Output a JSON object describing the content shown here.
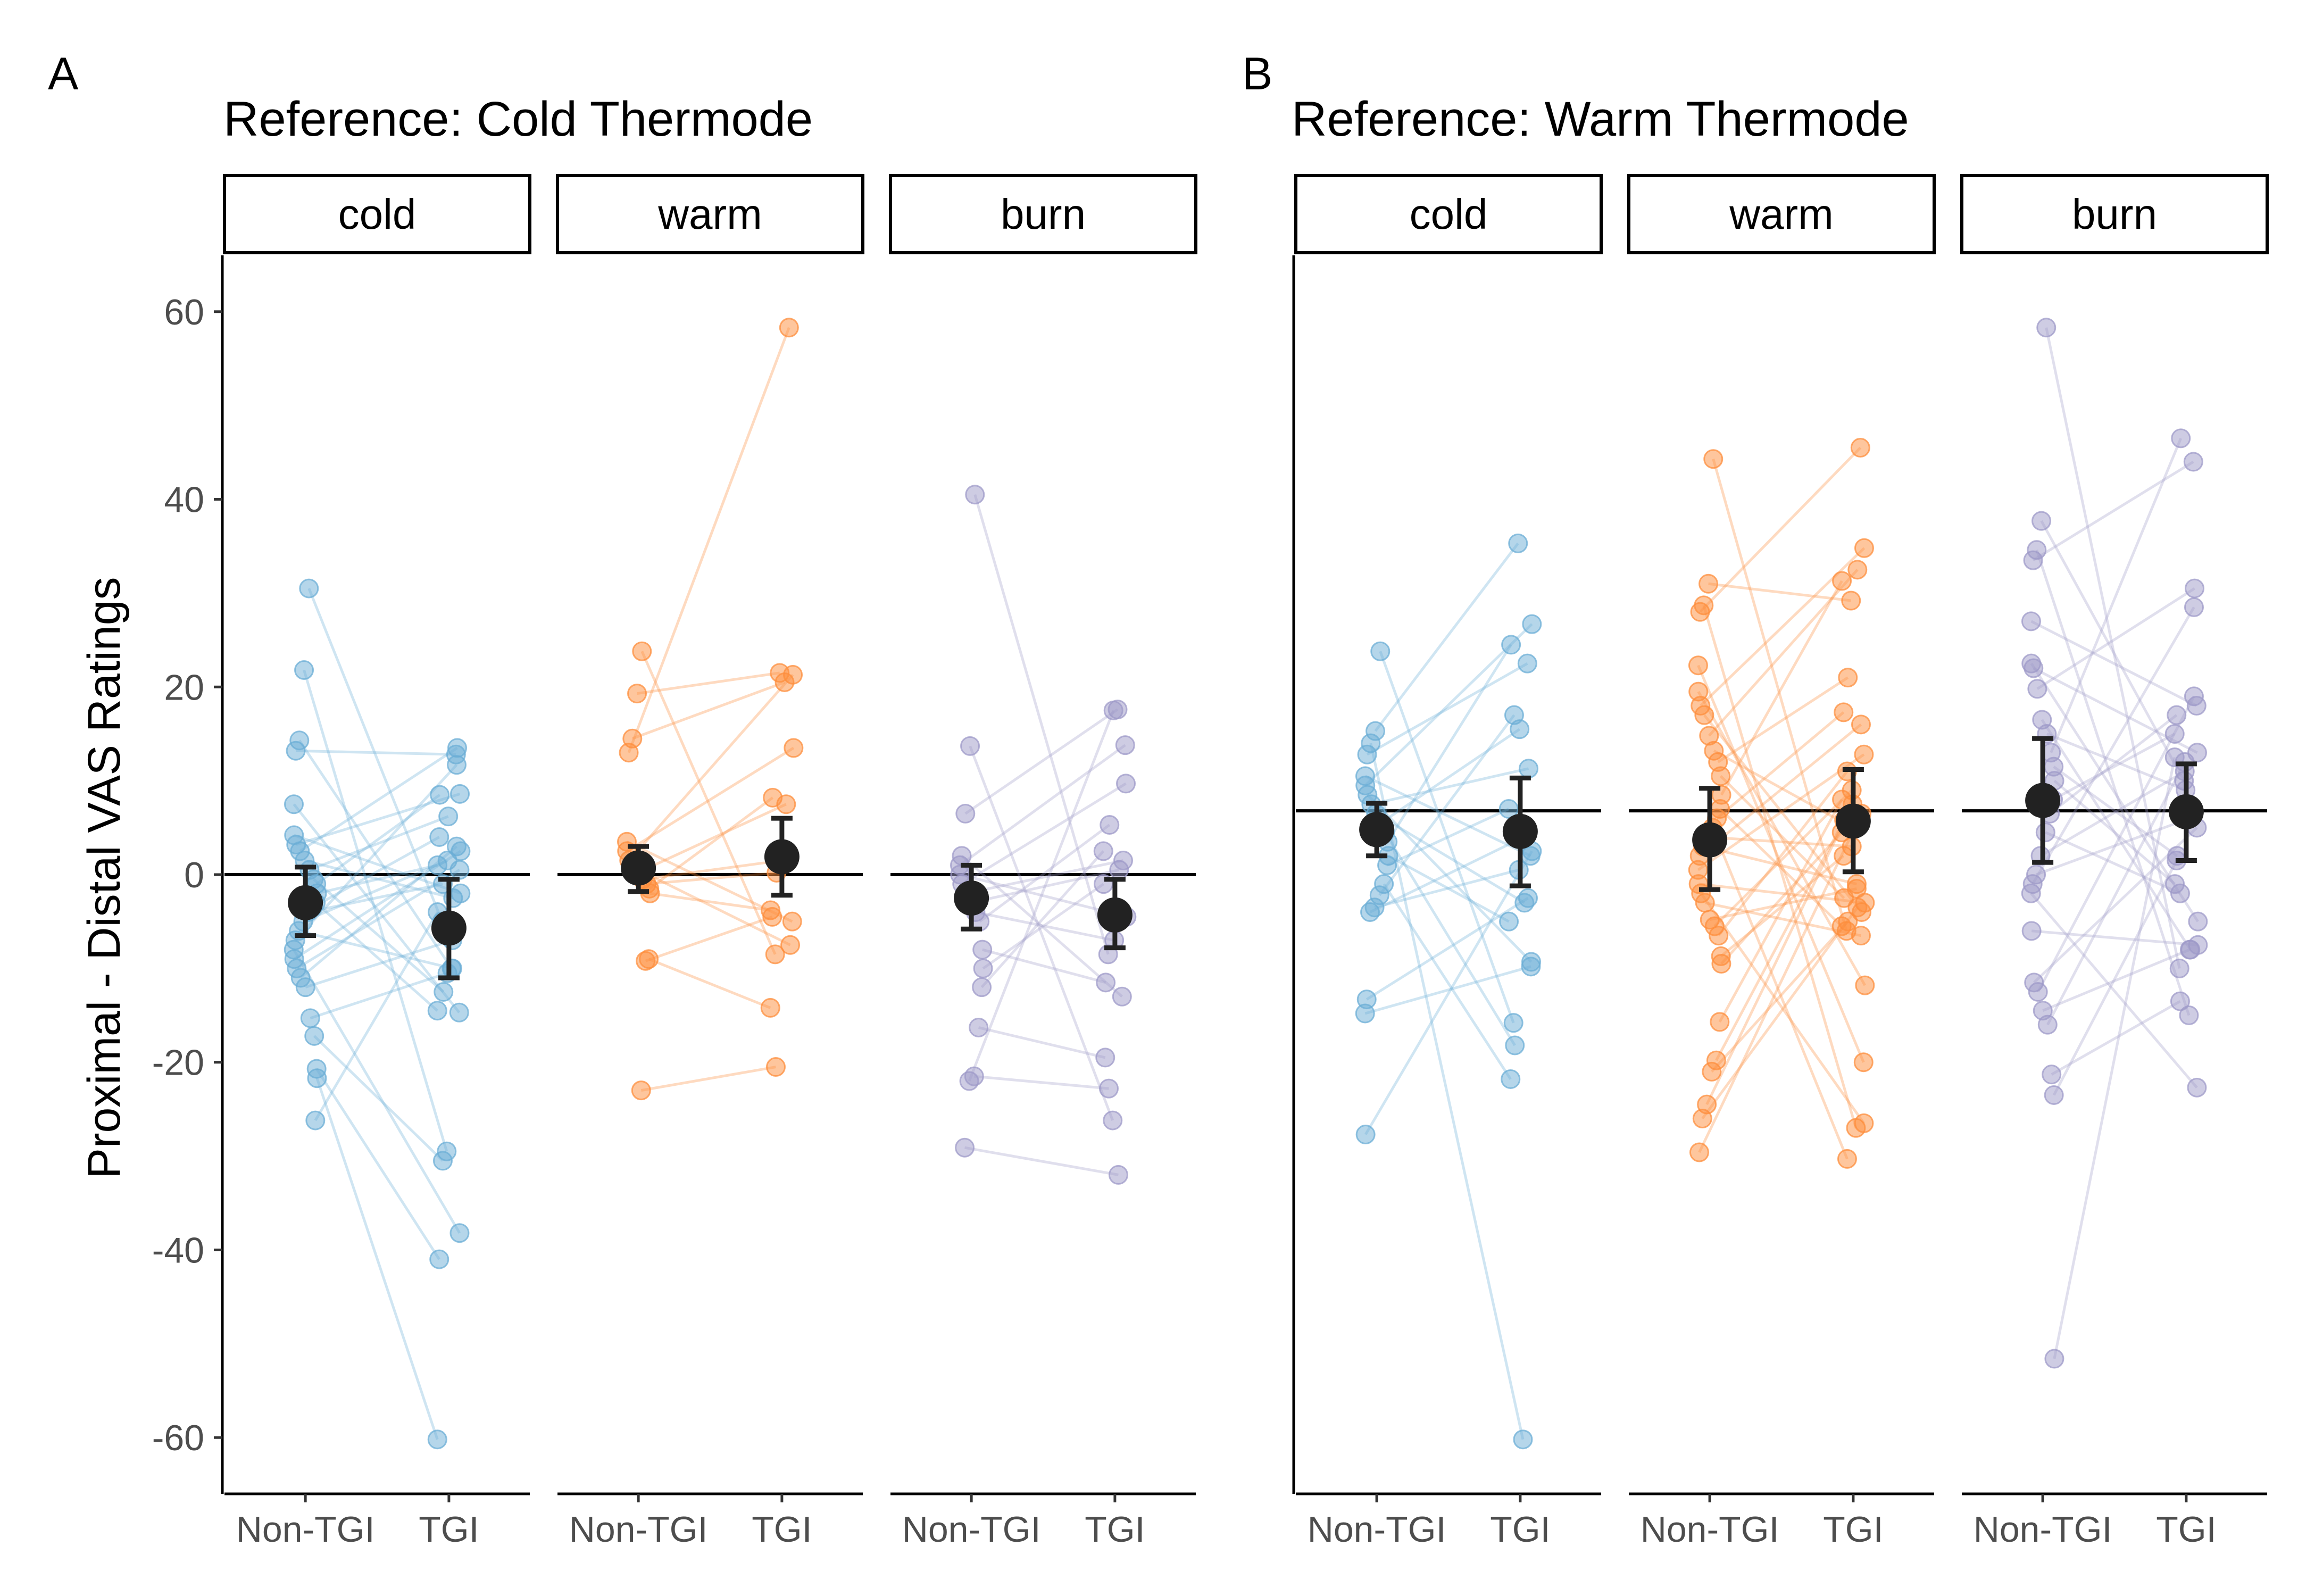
{
  "chart_data": [
    {
      "type": "scatter",
      "panel_label": "A",
      "title": "Reference: Cold Thermode",
      "ylabel": "Proximal - Distal VAS Ratings",
      "xlabel": "",
      "ylim": [
        -66,
        66
      ],
      "yticks": [
        60,
        40,
        20,
        0,
        -20,
        -40,
        -60
      ],
      "ytick_labels": [
        "60",
        "40",
        "20",
        "0",
        "-20",
        "-40",
        "-60"
      ],
      "categories": [
        "Non-TGI",
        "TGI"
      ],
      "reference_line": 0,
      "grid": false,
      "facets": [
        {
          "label": "cold",
          "color": "#6baed6",
          "pairs": [
            [
              30.5,
              -5
            ],
            [
              21.8,
              -29.5
            ],
            [
              14.3,
              -10
            ],
            [
              13.2,
              12.8
            ],
            [
              7.5,
              -14.7
            ],
            [
              4.2,
              -2
            ],
            [
              3.2,
              8.6
            ],
            [
              2.5,
              13.5
            ],
            [
              1.5,
              -2.5
            ],
            [
              0.5,
              6.2
            ],
            [
              -0.5,
              -12.5
            ],
            [
              -1,
              8.5
            ],
            [
              -2,
              1
            ],
            [
              -3,
              -14.5
            ],
            [
              -3.5,
              4
            ],
            [
              -4,
              -1
            ],
            [
              -5,
              1.5
            ],
            [
              -6,
              -10
            ],
            [
              -7,
              11.7
            ],
            [
              -8,
              -38.2
            ],
            [
              -9,
              2.5
            ],
            [
              -10,
              0.5
            ],
            [
              -11,
              3
            ],
            [
              -12,
              -7
            ],
            [
              -15.3,
              -10.5
            ],
            [
              -17.2,
              -30.5
            ],
            [
              -20.7,
              -41
            ],
            [
              -21.7,
              -60.2
            ],
            [
              -26.2,
              -4
            ]
          ],
          "mean": [
            -3,
            -5.7
          ],
          "ci_low": [
            -6.5,
            -11
          ],
          "ci_high": [
            0.8,
            -0.5
          ]
        },
        {
          "label": "warm",
          "color": "#fd8d3c",
          "pairs": [
            [
              23.8,
              -8.5
            ],
            [
              19.3,
              21.5
            ],
            [
              14.5,
              20.5
            ],
            [
              13,
              58.3
            ],
            [
              3.5,
              -5
            ],
            [
              2.5,
              13.5
            ],
            [
              1.5,
              21.3
            ],
            [
              0.8,
              -7.5
            ],
            [
              0.2,
              7.5
            ],
            [
              -0.5,
              1.5
            ],
            [
              -1,
              0.2
            ],
            [
              -1.5,
              8.2
            ],
            [
              -2,
              -3.8
            ],
            [
              -9,
              -14.2
            ],
            [
              -9.2,
              -4.5
            ],
            [
              -23,
              -20.5
            ]
          ],
          "mean": [
            0.7,
            1.9
          ],
          "ci_low": [
            -1.8,
            -2.2
          ],
          "ci_high": [
            3,
            6
          ]
        },
        {
          "label": "burn",
          "color": "#9e9ac8",
          "pairs": [
            [
              40.5,
              -8.5
            ],
            [
              13.7,
              -26.2
            ],
            [
              6.5,
              17.6
            ],
            [
              2,
              -13
            ],
            [
              1,
              13.8
            ],
            [
              0,
              -4.5
            ],
            [
              -1,
              9.7
            ],
            [
              -2,
              1.5
            ],
            [
              -3,
              0.5
            ],
            [
              -4,
              -7
            ],
            [
              -5,
              5.3
            ],
            [
              -8,
              -11.5
            ],
            [
              -10,
              -1
            ],
            [
              -12,
              2.5
            ],
            [
              -16.3,
              -19.5
            ],
            [
              -21.5,
              -22.8
            ],
            [
              -22,
              17.5
            ],
            [
              -29.1,
              -32
            ]
          ],
          "mean": [
            -2.5,
            -4.3
          ],
          "ci_low": [
            -5.8,
            -7.8
          ],
          "ci_high": [
            1,
            -0.5
          ]
        }
      ]
    },
    {
      "type": "scatter",
      "panel_label": "B",
      "title": "Reference: Warm Thermode",
      "ylabel": "",
      "xlabel": "",
      "ylim": [
        -66,
        66
      ],
      "categories": [
        "Non-TGI",
        "TGI"
      ],
      "reference_line": 6.8,
      "grid": false,
      "facets": [
        {
          "label": "cold",
          "color": "#6baed6",
          "pairs": [
            [
              23.8,
              -15.8
            ],
            [
              15.3,
              35.3
            ],
            [
              14,
              -60.2
            ],
            [
              12.8,
              22.5
            ],
            [
              10.5,
              2
            ],
            [
              9.5,
              26.7
            ],
            [
              8.5,
              -9.3
            ],
            [
              7.5,
              11.3
            ],
            [
              6.5,
              -3
            ],
            [
              5.5,
              15.5
            ],
            [
              4.5,
              -18.2
            ],
            [
              3.5,
              24.5
            ],
            [
              2,
              -5
            ],
            [
              1,
              7
            ],
            [
              -1,
              -21.8
            ],
            [
              -2.2,
              17
            ],
            [
              -3.5,
              0.5
            ],
            [
              -4,
              4
            ],
            [
              -13.3,
              -2.5
            ],
            [
              -14.8,
              -9.8
            ],
            [
              -27.7,
              2.5
            ]
          ],
          "mean": [
            4.8,
            4.6
          ],
          "ci_low": [
            2,
            -1.2
          ],
          "ci_high": [
            7.6,
            10.3
          ]
        },
        {
          "label": "warm",
          "color": "#fd8d3c",
          "pairs": [
            [
              44.3,
              -6
            ],
            [
              31,
              29.2
            ],
            [
              28.7,
              -27
            ],
            [
              28,
              45.5
            ],
            [
              22.3,
              -20
            ],
            [
              19.5,
              -11.8
            ],
            [
              18,
              34.8
            ],
            [
              17,
              -4
            ],
            [
              14.8,
              32.5
            ],
            [
              13.2,
              5
            ],
            [
              12,
              21
            ],
            [
              10.5,
              -2.5
            ],
            [
              8.5,
              31.3
            ],
            [
              7,
              -5.5
            ],
            [
              6,
              17.3
            ],
            [
              5,
              -30.3
            ],
            [
              4,
              3
            ],
            [
              3,
              -1
            ],
            [
              2,
              16
            ],
            [
              0.5,
              12.8
            ],
            [
              -1,
              -3
            ],
            [
              -2,
              -26.5
            ],
            [
              -3,
              -6.5
            ],
            [
              -4.8,
              -1.5
            ],
            [
              -5.5,
              9
            ],
            [
              -6.5,
              11
            ],
            [
              -8.7,
              2
            ],
            [
              -9.5,
              4.5
            ],
            [
              -15.7,
              8
            ],
            [
              -19.8,
              5.8
            ],
            [
              -21,
              -5
            ],
            [
              -24.5,
              7.5
            ],
            [
              -26,
              -3.5
            ],
            [
              -29.6,
              6.5
            ]
          ],
          "mean": [
            3.7,
            5.7
          ],
          "ci_low": [
            -1.6,
            0.3
          ],
          "ci_high": [
            9.2,
            11.2
          ]
        },
        {
          "label": "burn",
          "color": "#9e9ac8",
          "pairs": [
            [
              58.3,
              -10
            ],
            [
              37.7,
              10
            ],
            [
              34.6,
              -15
            ],
            [
              33.5,
              44
            ],
            [
              27,
              18
            ],
            [
              22.5,
              -5
            ],
            [
              22,
              13
            ],
            [
              19.8,
              30.5
            ],
            [
              16.5,
              -8
            ],
            [
              15,
              9
            ],
            [
              13,
              46.5
            ],
            [
              11.5,
              2
            ],
            [
              10,
              -1
            ],
            [
              8,
              15
            ],
            [
              6.5,
              17
            ],
            [
              4.5,
              -2
            ],
            [
              2,
              11
            ],
            [
              0,
              6
            ],
            [
              -1,
              28.5
            ],
            [
              -2,
              -22.7
            ],
            [
              -6,
              -7.5
            ],
            [
              -11.5,
              5
            ],
            [
              -12.5,
              19
            ],
            [
              -14.5,
              -8
            ],
            [
              -16,
              12
            ],
            [
              -21.3,
              -13.5
            ],
            [
              -23.5,
              1.5
            ],
            [
              -51.6,
              12.5
            ]
          ],
          "mean": [
            7.9,
            6.7
          ],
          "ci_low": [
            1.3,
            1.5
          ],
          "ci_high": [
            14.5,
            11.8
          ]
        }
      ]
    }
  ]
}
